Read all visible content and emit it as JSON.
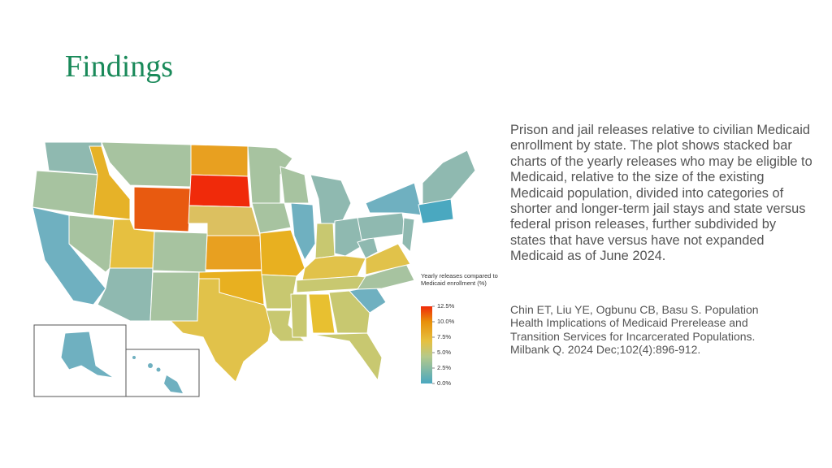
{
  "title": "Findings",
  "description": "Prison and jail releases relative to civilian Medicaid enrollment by state. The plot shows stacked bar charts of the yearly releases who may be eligible to Medicaid, relative to the size of the existing Medicaid population, divided into categories of shorter and longer-term jail stays and state versus federal prison releases, further subdivided by states that have versus have not expanded Medicaid as of June 2024.",
  "citation": "Chin ET, Liu YE, Ogbunu CB, Basu S. Population Health Implications of Medicaid Prerelease and Transition Services for Incarcerated Populations. Milbank Q. 2024 Dec;102(4):896-912.",
  "legend": {
    "title": "Yearly releases compared to Medicaid enrollment (%)",
    "ticks": [
      {
        "value": 12.5,
        "label": "12.5%"
      },
      {
        "value": 10,
        "label": "10.0%"
      },
      {
        "value": 7.5,
        "label": "7.5%"
      },
      {
        "value": 5,
        "label": "5.0%"
      },
      {
        "value": 2.5,
        "label": "2.5%"
      },
      {
        "value": 0,
        "label": "0.0%"
      }
    ],
    "range": [
      0,
      12.5
    ]
  }
}
